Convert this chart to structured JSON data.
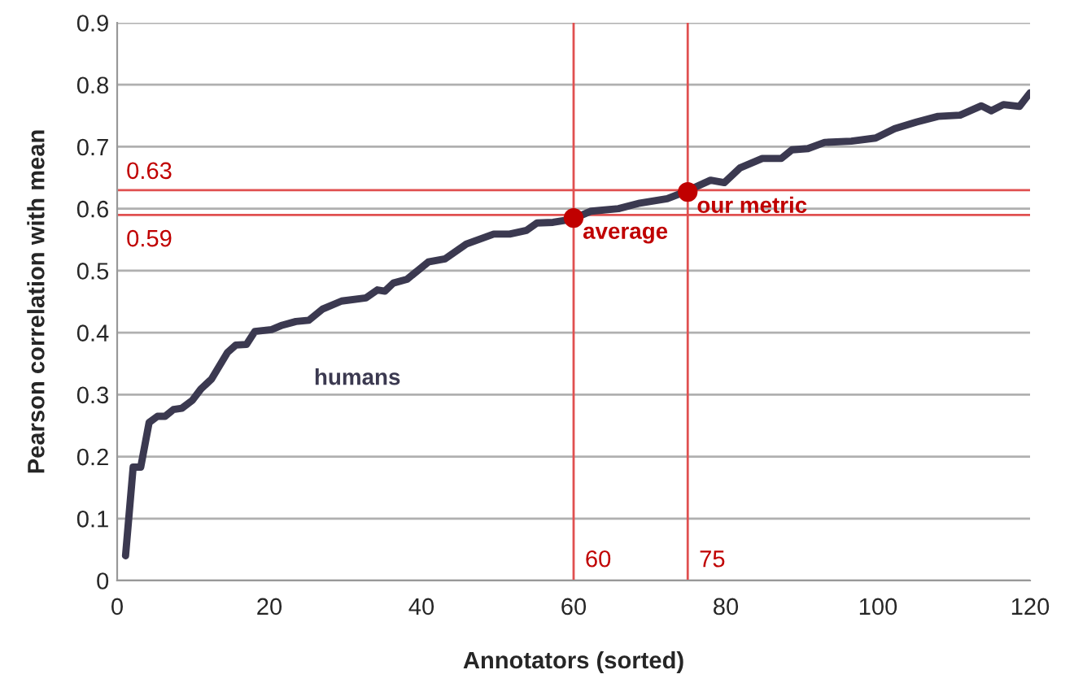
{
  "chart_data": {
    "type": "line",
    "xlabel": "Annotators (sorted)",
    "ylabel": "Pearson correlation with mean",
    "xlim": [
      0,
      120
    ],
    "xticks": [
      0,
      20,
      40,
      60,
      80,
      100,
      120
    ],
    "ylim": [
      0,
      0.9
    ],
    "yticks": [
      0,
      0.1,
      0.2,
      0.3,
      0.4,
      0.5,
      0.6,
      0.7,
      0.8,
      0.9
    ],
    "grid": "y",
    "legend": false,
    "series": [
      {
        "name": "humans",
        "color": "#3b3950",
        "x": [
          1.1,
          2.1,
          3.1,
          4.2,
          5.3,
          6.3,
          7.4,
          8.5,
          9.9,
          11.0,
          12.4,
          14.5,
          15.6,
          17.0,
          18.1,
          20.3,
          21.7,
          23.5,
          25.2,
          27.0,
          29.5,
          32.7,
          34.2,
          35.2,
          36.3,
          38.1,
          40.9,
          43.1,
          45.9,
          49.5,
          51.6,
          53.8,
          55.2,
          57.3,
          59.8,
          62.3,
          65.9,
          68.7,
          72.3,
          74.8,
          78.0,
          79.8,
          81.9,
          84.8,
          87.3,
          88.7,
          90.8,
          93.0,
          96.5,
          99.7,
          102.2,
          105.1,
          107.9,
          110.8,
          113.6,
          114.9,
          116.5,
          118.6,
          120
        ],
        "values": [
          0.04,
          0.183,
          0.183,
          0.255,
          0.265,
          0.265,
          0.276,
          0.278,
          0.291,
          0.309,
          0.325,
          0.368,
          0.38,
          0.381,
          0.402,
          0.405,
          0.412,
          0.418,
          0.42,
          0.438,
          0.451,
          0.456,
          0.469,
          0.467,
          0.48,
          0.486,
          0.514,
          0.519,
          0.543,
          0.559,
          0.559,
          0.565,
          0.577,
          0.578,
          0.583,
          0.596,
          0.6,
          0.609,
          0.616,
          0.628,
          0.646,
          0.642,
          0.666,
          0.681,
          0.681,
          0.695,
          0.697,
          0.707,
          0.709,
          0.714,
          0.729,
          0.74,
          0.749,
          0.751,
          0.766,
          0.758,
          0.768,
          0.765,
          0.787
        ]
      },
      {
        "type": "scatter",
        "color": "#c00000",
        "x": [
          60,
          75
        ],
        "values": [
          0.585,
          0.627
        ],
        "marker": "circle"
      }
    ],
    "ref_lines": [
      {
        "axis": "y",
        "value": 0.63,
        "label": "0.63",
        "color": "#e05050"
      },
      {
        "axis": "y",
        "value": 0.59,
        "label": "0.59",
        "color": "#e05050"
      },
      {
        "axis": "x",
        "value": 60,
        "label": "60",
        "color": "#e05050"
      },
      {
        "axis": "x",
        "value": 75,
        "label": "75",
        "color": "#e05050"
      }
    ],
    "annotations": [
      {
        "text": "average",
        "x": 60,
        "y": 0.585
      },
      {
        "text": "our metric",
        "x": 75,
        "y": 0.627
      }
    ]
  }
}
